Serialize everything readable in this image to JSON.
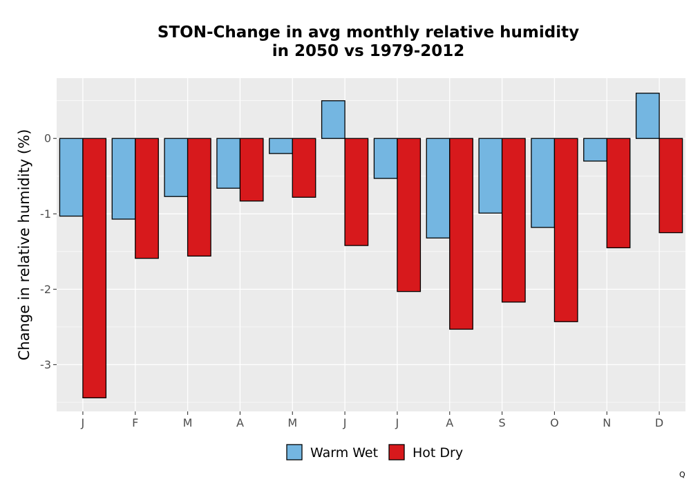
{
  "chart_data": {
    "type": "bar",
    "title_lines": [
      "STON-Change in avg monthly relative humidity",
      "in 2050 vs 1979-2012"
    ],
    "xlabel": "",
    "ylabel": "Change in relative humidity (%)",
    "categories": [
      "J",
      "F",
      "M",
      "A",
      "M",
      "J",
      "J",
      "A",
      "S",
      "O",
      "N",
      "D"
    ],
    "series": [
      {
        "name": "Warm Wet",
        "color": "#74b6e1",
        "values": [
          -1.03,
          -1.07,
          -0.77,
          -0.66,
          -0.2,
          0.5,
          -0.53,
          -1.32,
          -0.99,
          -1.18,
          -0.3,
          0.6
        ]
      },
      {
        "name": "Hot Dry",
        "color": "#d7191c",
        "values": [
          -3.44,
          -1.59,
          -1.56,
          -0.83,
          -0.78,
          -1.42,
          -2.03,
          -2.53,
          -2.17,
          -2.43,
          -1.45,
          -1.25
        ]
      }
    ],
    "yticks": [
      0,
      -1,
      -2,
      -3
    ],
    "ylim": [
      -3.62,
      0.8
    ],
    "grid": true,
    "legend": "bottom",
    "panel_background": "#ebebeb",
    "bar_outline": "#000000"
  },
  "corner_mark": "Q"
}
